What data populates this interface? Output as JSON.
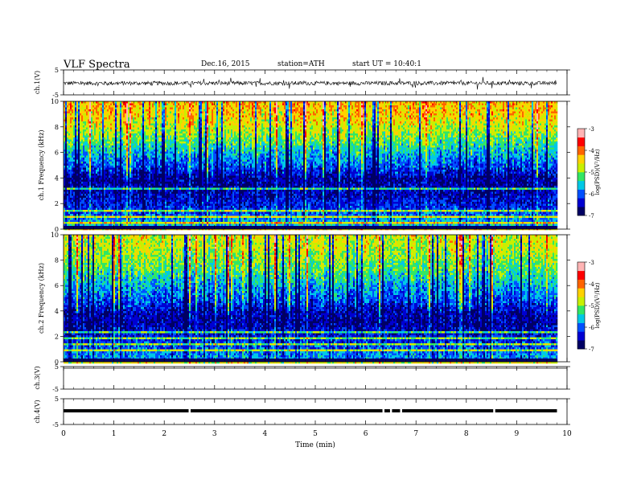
{
  "header": {
    "title": "VLF  Spectra",
    "date": "Dec.16, 2015",
    "station": "station=ATH",
    "start": "start  UT =    10:40:1"
  },
  "chart_data": [
    {
      "type": "line",
      "name": "ch1-waveform",
      "ylabel": "ch.1(V)",
      "ylim": [
        -5,
        5
      ],
      "y_ticks": [
        "5",
        "-5"
      ],
      "xlim": [
        0,
        10
      ],
      "data_x_range": [
        0,
        9.8
      ],
      "baseline": 0,
      "noise_amplitude": 0.8
    },
    {
      "type": "heatmap",
      "name": "ch1-spectrogram",
      "ylabel": "ch.1 Frequency (kHz)",
      "ylim": [
        0,
        10
      ],
      "y_ticks": [
        "0",
        "2",
        "4",
        "6",
        "8",
        "10"
      ],
      "colorbar": {
        "label": "log(PSD)(V²/Hz)",
        "range": [
          -7,
          -3
        ],
        "ticks": [
          "-3",
          "-4",
          "-5",
          "-6",
          "-7"
        ]
      },
      "logpsd_by_freq_khz": [
        [
          0.5,
          -5.6
        ],
        [
          1.0,
          -5.9
        ],
        [
          2.0,
          -6.3
        ],
        [
          3.0,
          -6.5
        ],
        [
          4.0,
          -6.6
        ],
        [
          5.0,
          -6.0
        ],
        [
          6.0,
          -5.6
        ],
        [
          7.0,
          -5.1
        ],
        [
          8.0,
          -4.7
        ],
        [
          9.0,
          -4.4
        ],
        [
          10.0,
          -4.3
        ]
      ]
    },
    {
      "type": "heatmap",
      "name": "ch2-spectrogram",
      "ylabel": "ch.2 Frequency (kHz)",
      "ylim": [
        0,
        10
      ],
      "y_ticks": [
        "0",
        "2",
        "4",
        "6",
        "8",
        "10"
      ],
      "colorbar": {
        "label": "log(PSD)(V²/Hz)",
        "range": [
          -7,
          -3
        ],
        "ticks": [
          "-3",
          "-4",
          "-5",
          "-6",
          "-7"
        ]
      },
      "logpsd_by_freq_khz": [
        [
          0.5,
          -5.8
        ],
        [
          1.0,
          -6.0
        ],
        [
          2.0,
          -6.3
        ],
        [
          3.0,
          -6.6
        ],
        [
          4.0,
          -6.5
        ],
        [
          5.0,
          -6.0
        ],
        [
          6.0,
          -5.7
        ],
        [
          7.0,
          -5.3
        ],
        [
          8.0,
          -5.0
        ],
        [
          9.0,
          -4.8
        ],
        [
          10.0,
          -4.7
        ]
      ]
    },
    {
      "type": "line",
      "name": "ch3-waveform",
      "ylabel": "ch.3(V)",
      "ylim": [
        -5,
        5
      ],
      "y_ticks": [
        "5",
        "-5"
      ],
      "xlim": [
        0,
        10
      ],
      "baseline": 5
    },
    {
      "type": "line",
      "name": "ch4-waveform",
      "ylabel": "ch.4(V)",
      "ylim": [
        -5,
        5
      ],
      "y_ticks": [
        "5",
        "-5"
      ],
      "xlim": [
        0,
        10
      ],
      "data_x_range": [
        0,
        9.8
      ],
      "baseline": 0,
      "gaps_min": [
        2.5,
        6.35,
        6.5,
        6.7,
        8.55
      ]
    }
  ],
  "x_axis": {
    "label": "Time  (min)",
    "ticks": [
      "0",
      "1",
      "2",
      "3",
      "4",
      "5",
      "6",
      "7",
      "8",
      "9",
      "10"
    ],
    "range": [
      0,
      10
    ]
  },
  "colors": {
    "colormap": [
      "#000064",
      "#0000d2",
      "#0050ff",
      "#00c8e6",
      "#32e664",
      "#c8f000",
      "#ffd200",
      "#ff6400",
      "#ff0000",
      "#ffb4b4"
    ]
  }
}
